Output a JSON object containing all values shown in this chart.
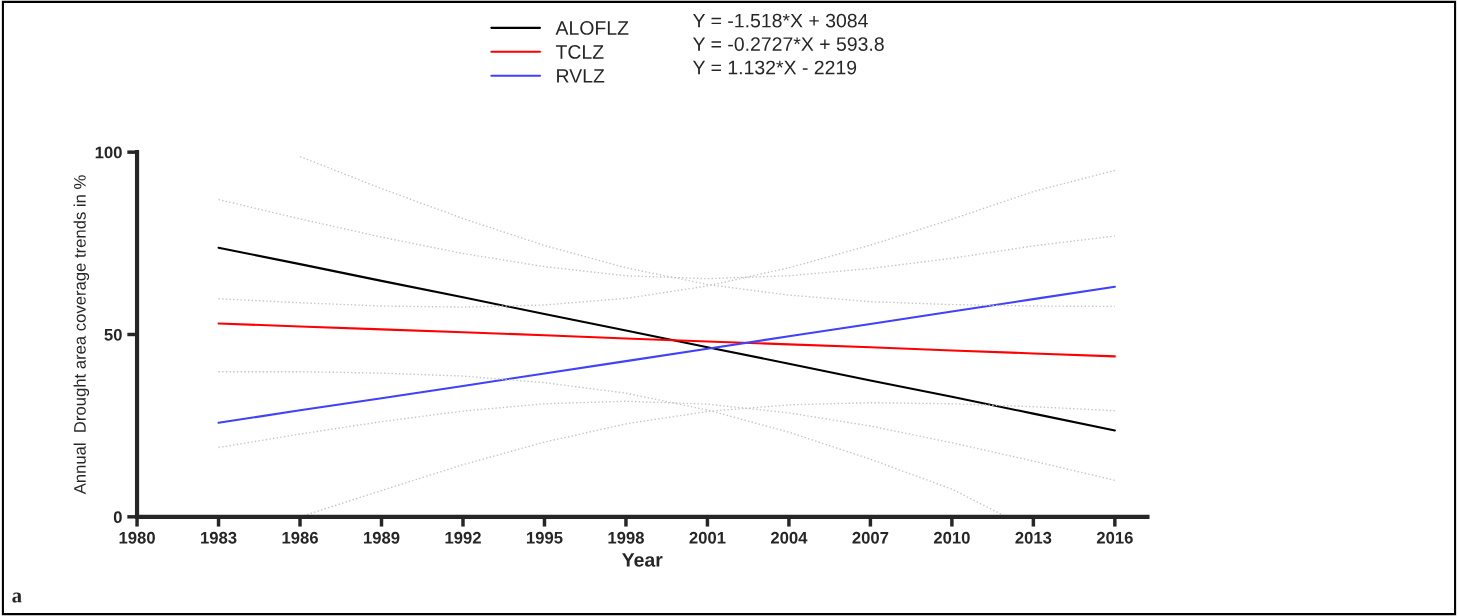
{
  "chart_data": {
    "type": "line",
    "xlabel": "Year",
    "ylabel": "Annual  Drought area coverage trends in %",
    "xlim": [
      1980,
      2017.2
    ],
    "ylim": [
      0,
      100
    ],
    "xticks": [
      1980,
      1983,
      1986,
      1989,
      1992,
      1995,
      1998,
      2001,
      2004,
      2007,
      2010,
      2013,
      2016
    ],
    "yticks": [
      0,
      50,
      100
    ],
    "legend": "top",
    "annotations": [
      "Y = -1.518*X + 3084",
      "Y = -0.2727*X + 593.8",
      "Y = 1.132*X - 2219",
      "a"
    ],
    "series": [
      {
        "name": "ALOFLZ",
        "color": "#000000",
        "x": [
          1983,
          1986,
          1989,
          1992,
          1995,
          1998,
          2001,
          2004,
          2007,
          2010,
          2013,
          2016
        ],
        "values": [
          73.8,
          69.3,
          64.7,
          60.2,
          55.6,
          51.1,
          46.5,
          42.0,
          37.4,
          32.9,
          28.3,
          23.7
        ]
      },
      {
        "name": "TCLZ",
        "color": "#ff0000",
        "x": [
          1983,
          1986,
          1989,
          1992,
          1995,
          1998,
          2001,
          2004,
          2007,
          2010,
          2013,
          2016
        ],
        "values": [
          53.0,
          52.2,
          51.4,
          50.6,
          49.8,
          48.9,
          48.1,
          47.3,
          46.5,
          45.6,
          44.8,
          44.0
        ]
      },
      {
        "name": "RVLZ",
        "color": "#4040ff",
        "x": [
          1983,
          1986,
          1989,
          1992,
          1995,
          1998,
          2001,
          2004,
          2007,
          2010,
          2013,
          2016
        ],
        "values": [
          25.8,
          29.2,
          32.5,
          35.9,
          39.3,
          42.7,
          46.1,
          49.5,
          52.9,
          56.3,
          59.7,
          63.1
        ]
      },
      {
        "color": "#c4c4c4",
        "line_style": "dotted",
        "x": [
          1986,
          1989,
          1992,
          1995,
          1998,
          2001,
          2004,
          2007,
          2010,
          2013,
          2016
        ],
        "values": [
          98.8,
          90.0,
          81.8,
          74.4,
          68.3,
          63.7,
          60.8,
          59.0,
          58.2,
          57.8,
          57.7
        ]
      },
      {
        "color": "#c4c4c4",
        "line_style": "dotted",
        "x": [
          1983,
          1986,
          1989,
          1992,
          1995,
          1998,
          2001,
          2004,
          2007,
          2010,
          2012
        ],
        "values": [
          39.8,
          39.8,
          39.4,
          38.6,
          36.8,
          33.9,
          29.3,
          23.2,
          15.8,
          7.6,
          0
        ]
      },
      {
        "color": "#c4c4c4",
        "line_style": "dotted",
        "x": [
          1983,
          1986,
          1989,
          1992,
          1995,
          1998,
          2001,
          2004,
          2007,
          2010,
          2013,
          2016
        ],
        "values": [
          87.0,
          81.7,
          76.7,
          72.2,
          68.6,
          66.1,
          65.3,
          66.1,
          68.1,
          70.9,
          74.3,
          77.0
        ]
      },
      {
        "color": "#c4c4c4",
        "line_style": "dotted",
        "x": [
          1983,
          1986,
          1989,
          1992,
          1995,
          1998,
          2001,
          2004,
          2007,
          2010,
          2013,
          2016
        ],
        "values": [
          19.0,
          22.7,
          26.1,
          29.0,
          31.0,
          31.7,
          30.9,
          28.5,
          24.9,
          20.3,
          15.3,
          10.0
        ]
      },
      {
        "color": "#c4c4c4",
        "line_style": "dotted",
        "x": [
          1983,
          1986,
          1989,
          1992,
          1995,
          1998,
          2001,
          2004,
          2007,
          2010,
          2013,
          2016
        ],
        "values": [
          59.8,
          58.7,
          57.8,
          57.5,
          58.1,
          59.9,
          63.3,
          68.3,
          74.5,
          81.6,
          89.2,
          95.0
        ]
      },
      {
        "color": "#c4c4c4",
        "line_style": "dotted",
        "x": [
          1986,
          1989,
          1992,
          1995,
          1998,
          2001,
          2004,
          2007,
          2010,
          2013,
          2016
        ],
        "values": [
          0,
          7.2,
          14.3,
          20.5,
          25.5,
          28.9,
          30.7,
          31.3,
          31.0,
          30.2,
          29.1
        ]
      }
    ]
  }
}
